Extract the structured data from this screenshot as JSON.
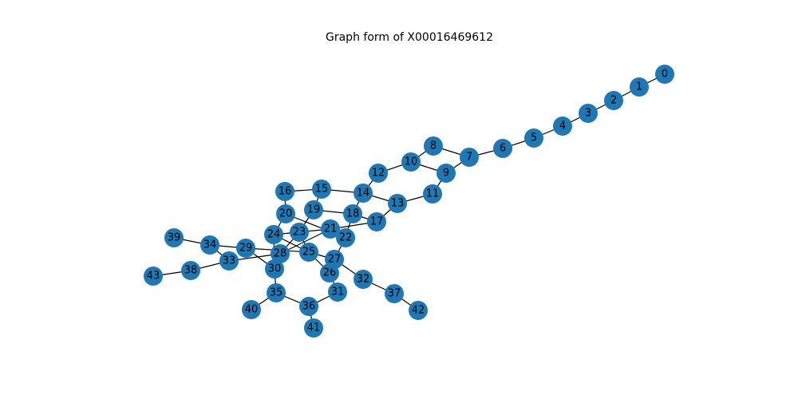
{
  "title": "Graph form of X00016469612",
  "node_color": "#1f77b4",
  "edge_color": "#000000",
  "nodes": [
    "0",
    "1",
    "2",
    "3",
    "4",
    "5",
    "6",
    "7",
    "8",
    "9",
    "10",
    "11",
    "12",
    "13",
    "14",
    "15",
    "16",
    "17",
    "18",
    "19",
    "20",
    "21",
    "22",
    "23",
    "24",
    "25",
    "26",
    "27",
    "28",
    "29",
    "30",
    "31",
    "32",
    "33",
    "34",
    "35",
    "36",
    "37",
    "38",
    "39",
    "40",
    "41",
    "42",
    "43"
  ],
  "edges": [
    [
      "0",
      "1"
    ],
    [
      "1",
      "2"
    ],
    [
      "2",
      "3"
    ],
    [
      "3",
      "4"
    ],
    [
      "4",
      "5"
    ],
    [
      "5",
      "6"
    ],
    [
      "6",
      "7"
    ],
    [
      "7",
      "8"
    ],
    [
      "7",
      "9"
    ],
    [
      "8",
      "10"
    ],
    [
      "9",
      "10"
    ],
    [
      "9",
      "11"
    ],
    [
      "10",
      "12"
    ],
    [
      "11",
      "13"
    ],
    [
      "12",
      "14"
    ],
    [
      "13",
      "14"
    ],
    [
      "13",
      "17"
    ],
    [
      "14",
      "15"
    ],
    [
      "14",
      "18"
    ],
    [
      "15",
      "16"
    ],
    [
      "15",
      "19"
    ],
    [
      "16",
      "20"
    ],
    [
      "17",
      "18"
    ],
    [
      "17",
      "21"
    ],
    [
      "18",
      "19"
    ],
    [
      "18",
      "22"
    ],
    [
      "19",
      "23"
    ],
    [
      "20",
      "24"
    ],
    [
      "20",
      "22"
    ],
    [
      "21",
      "22"
    ],
    [
      "21",
      "24"
    ],
    [
      "21",
      "28"
    ],
    [
      "22",
      "27"
    ],
    [
      "23",
      "25"
    ],
    [
      "23",
      "28"
    ],
    [
      "24",
      "25"
    ],
    [
      "24",
      "30"
    ],
    [
      "25",
      "26"
    ],
    [
      "25",
      "27"
    ],
    [
      "25",
      "29"
    ],
    [
      "26",
      "27"
    ],
    [
      "26",
      "31"
    ],
    [
      "27",
      "32"
    ],
    [
      "28",
      "33"
    ],
    [
      "28",
      "30"
    ],
    [
      "29",
      "34"
    ],
    [
      "29",
      "30"
    ],
    [
      "30",
      "35"
    ],
    [
      "31",
      "36"
    ],
    [
      "32",
      "37"
    ],
    [
      "33",
      "34"
    ],
    [
      "33",
      "38"
    ],
    [
      "34",
      "39"
    ],
    [
      "35",
      "36"
    ],
    [
      "35",
      "40"
    ],
    [
      "36",
      "41"
    ],
    [
      "37",
      "42"
    ],
    [
      "38",
      "43"
    ]
  ]
}
